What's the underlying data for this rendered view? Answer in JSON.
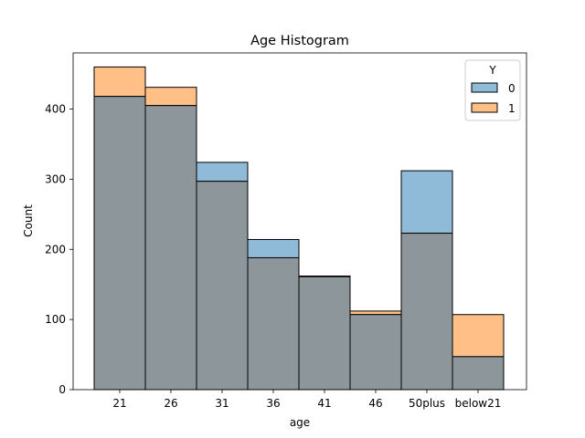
{
  "chart_data": {
    "type": "bar",
    "stacking": "overlay",
    "title": "Age Histogram",
    "xlabel": "age",
    "ylabel": "Count",
    "categories": [
      "21",
      "26",
      "31",
      "36",
      "41",
      "46",
      "50plus",
      "below21"
    ],
    "yticks": [
      0,
      100,
      200,
      300,
      400
    ],
    "ylim": [
      0,
      480
    ],
    "grid": false,
    "legend": {
      "title": "Y",
      "position": "top-right"
    },
    "series": [
      {
        "name": "0",
        "color": "#1f77b4",
        "values": [
          418,
          405,
          324,
          214,
          161,
          107,
          312,
          47
        ]
      },
      {
        "name": "1",
        "color": "#ff7f0e",
        "values": [
          460,
          431,
          297,
          188,
          162,
          112,
          223,
          107
        ]
      }
    ],
    "overlap_color": "#8c969b"
  }
}
